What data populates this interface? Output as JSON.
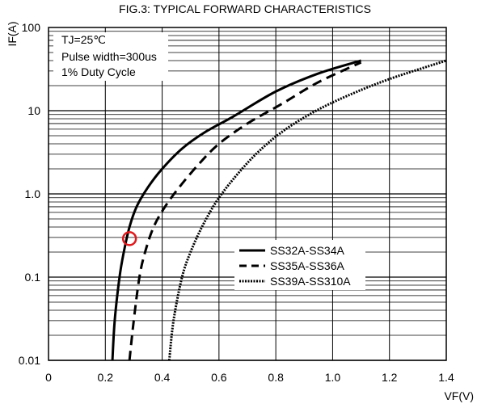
{
  "chart_data": {
    "type": "line",
    "title": "FIG.3: TYPICAL FORWARD CHARACTERISTICS",
    "xlabel": "VF(V)",
    "ylabel": "IF(A)",
    "x_scale": "linear",
    "y_scale": "log",
    "xlim": [
      0,
      1.4
    ],
    "ylim": [
      0.01,
      100
    ],
    "x_ticks": [
      "0",
      "0.2",
      "0.4",
      "0.6",
      "0.8",
      "1.0",
      "1.2",
      "1.4"
    ],
    "y_ticks": [
      "0.01",
      "0.1",
      "1.0",
      "10",
      "100"
    ],
    "grid": true,
    "annotations": [
      "TJ=25℃",
      "Pulse width=300us",
      "1% Duty Cycle"
    ],
    "legend_position": "lower-right",
    "series": [
      {
        "name": "SS32A-SS34A",
        "style": "solid",
        "x": [
          0.225,
          0.233,
          0.25,
          0.265,
          0.285,
          0.31,
          0.35,
          0.4,
          0.47,
          0.55,
          0.65,
          0.8,
          0.95,
          1.1
        ],
        "y": [
          0.01,
          0.03,
          0.1,
          0.2,
          0.4,
          0.7,
          1.2,
          2.0,
          3.5,
          5.5,
          8.5,
          17,
          28,
          40
        ]
      },
      {
        "name": "SS35A-SS36A",
        "style": "dashed",
        "x": [
          0.285,
          0.3,
          0.32,
          0.34,
          0.37,
          0.41,
          0.46,
          0.53,
          0.6,
          0.7,
          0.82,
          0.95,
          1.1
        ],
        "y": [
          0.01,
          0.03,
          0.1,
          0.2,
          0.4,
          0.7,
          1.2,
          2.3,
          4.0,
          7.0,
          12,
          22,
          38
        ]
      },
      {
        "name": "SS39A-SS310A",
        "style": "dotted",
        "x": [
          0.425,
          0.44,
          0.47,
          0.5,
          0.54,
          0.59,
          0.65,
          0.73,
          0.82,
          0.93,
          1.05,
          1.2,
          1.4
        ],
        "y": [
          0.01,
          0.03,
          0.1,
          0.2,
          0.4,
          0.8,
          1.5,
          3.0,
          5.5,
          9.5,
          15,
          24,
          40
        ]
      }
    ],
    "marker": {
      "x": 0.285,
      "y": 0.29,
      "shape": "circle",
      "color": "#e0191c"
    }
  }
}
